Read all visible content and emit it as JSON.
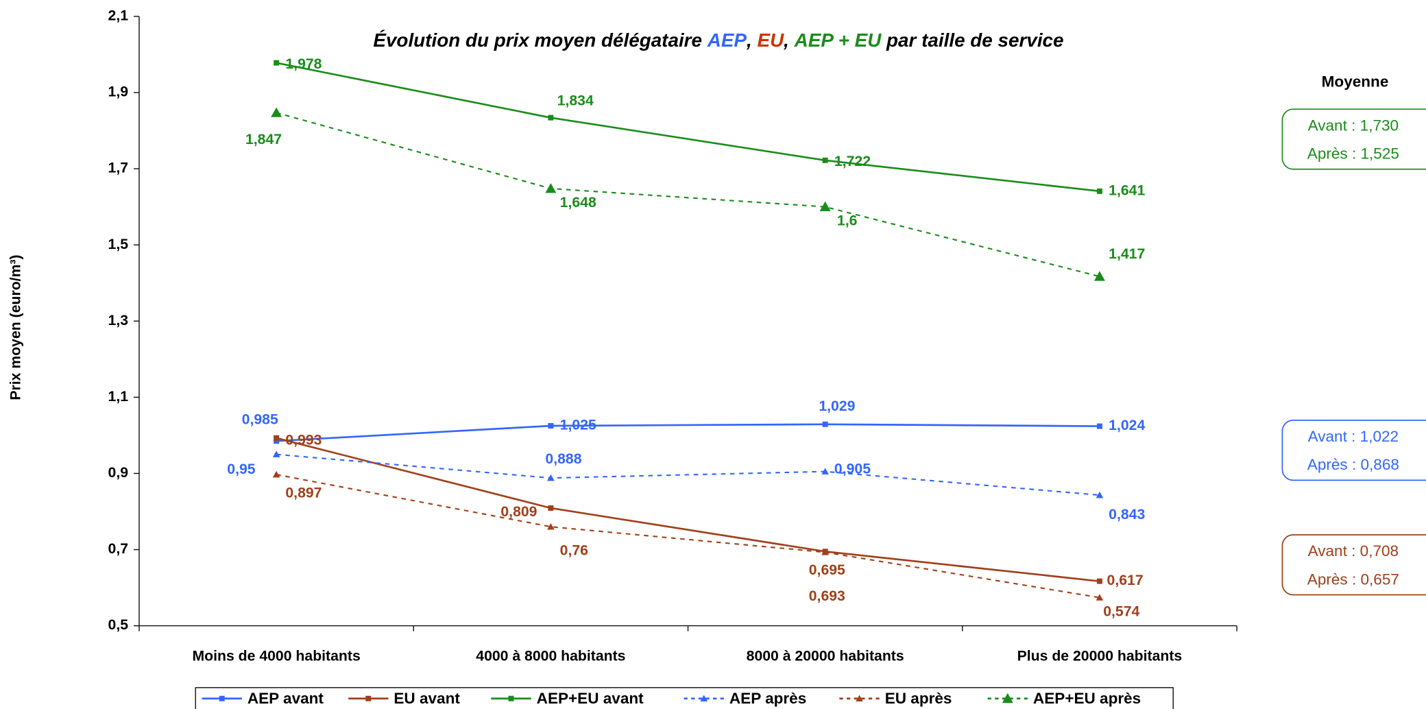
{
  "chart_data": {
    "type": "line",
    "title_parts": [
      {
        "text": "Évolution du prix moyen délégataire ",
        "color": "#000000"
      },
      {
        "text": "AEP",
        "color": "#3366ff"
      },
      {
        "text": ", ",
        "color": "#000000"
      },
      {
        "text": "EU",
        "color": "#cc3300"
      },
      {
        "text": ", ",
        "color": "#000000"
      },
      {
        "text": "AEP + EU",
        "color": "#1a8c1a"
      },
      {
        "text": " par taille de service",
        "color": "#000000"
      }
    ],
    "y_label": "Prix moyen (euro/m³)",
    "categories": [
      "Moins de 4000 habitants",
      "4000 à 8000 habitants",
      "8000 à 20000 habitants",
      "Plus de 20000 habitants"
    ],
    "ylim": [
      0.5,
      2.1
    ],
    "yticks": [
      {
        "value": 0.5,
        "label": "0,5"
      },
      {
        "value": 0.7,
        "label": "0,7"
      },
      {
        "value": 0.9,
        "label": "0,9"
      },
      {
        "value": 1.1,
        "label": "1,1"
      },
      {
        "value": 1.3,
        "label": "1,3"
      },
      {
        "value": 1.5,
        "label": "1,5"
      },
      {
        "value": 1.7,
        "label": "1,7"
      },
      {
        "value": 1.9,
        "label": "1,9"
      },
      {
        "value": 2.1,
        "label": "2,1"
      }
    ],
    "series": [
      {
        "name": "AEP avant",
        "color": "#3366ff",
        "dashed": false,
        "marker": "square",
        "values": [
          0.985,
          1.025,
          1.029,
          1.024
        ],
        "value_labels": [
          "0,985",
          "1,025",
          "1,029",
          "1,024"
        ]
      },
      {
        "name": "EU avant",
        "color": "#a0401a",
        "dashed": false,
        "marker": "square",
        "values": [
          0.993,
          0.809,
          0.695,
          0.617
        ],
        "value_labels": [
          "0,993",
          "0,809",
          "0,695",
          "0,617"
        ]
      },
      {
        "name": "AEP+EU avant",
        "color": "#1a8c1a",
        "dashed": false,
        "marker": "square",
        "values": [
          1.978,
          1.834,
          1.722,
          1.641
        ],
        "value_labels": [
          "1,978",
          "1,834",
          "1,722",
          "1,641"
        ]
      },
      {
        "name": "AEP après",
        "color": "#3366ff",
        "dashed": true,
        "marker": "triangle",
        "values": [
          0.95,
          0.888,
          0.905,
          0.843
        ],
        "value_labels": [
          "0,95",
          "0,888",
          "0,905",
          "0,843"
        ]
      },
      {
        "name": "EU après",
        "color": "#a0401a",
        "dashed": true,
        "marker": "triangle",
        "values": [
          0.897,
          0.76,
          0.693,
          0.574
        ],
        "value_labels": [
          "0,897",
          "0,76",
          "0,693",
          "0,574"
        ]
      },
      {
        "name": "AEP+EU après",
        "color": "#1a8c1a",
        "dashed": true,
        "marker": "triangle-large",
        "values": [
          1.847,
          1.648,
          1.6,
          1.417
        ],
        "value_labels": [
          "1,847",
          "1,648",
          "1,6",
          "1,417"
        ]
      }
    ],
    "annotations": {
      "title": "Moyenne",
      "boxes": [
        {
          "color": "#1a8c1a",
          "lines": [
            "Avant : 1,730",
            "Après : 1,525"
          ]
        },
        {
          "color": "#3366ff",
          "lines": [
            "Avant : 1,022",
            "Après : 0,868"
          ]
        },
        {
          "color": "#a0401a",
          "lines": [
            "Avant : 0,708",
            "Après : 0,657"
          ]
        }
      ]
    },
    "legend": "bottom"
  }
}
